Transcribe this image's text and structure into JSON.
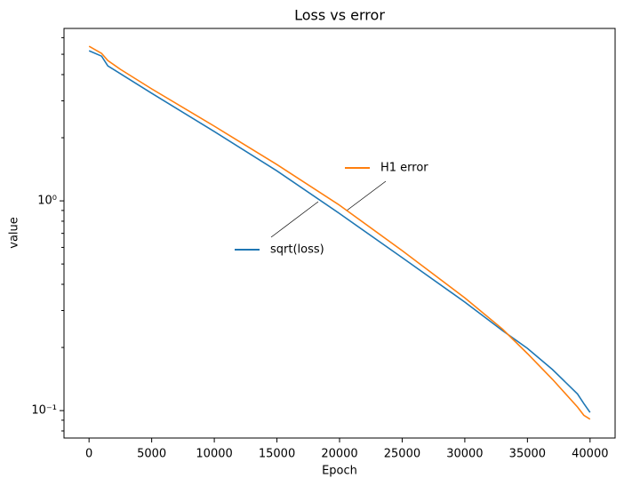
{
  "chart_data": {
    "type": "line",
    "title": "Loss vs error",
    "xlabel": "Epoch",
    "ylabel": "value",
    "ylog": true,
    "grid": false,
    "x": [
      0,
      1000,
      1500,
      2500,
      5000,
      10000,
      15000,
      20000,
      25000,
      30000,
      33000,
      35000,
      37000,
      39000,
      39500,
      40000
    ],
    "series": [
      {
        "name": "sqrt(loss)",
        "color": "#1f77b4",
        "values": [
          5.2,
          4.9,
          4.4,
          4.04,
          3.26,
          2.14,
          1.39,
          0.87,
          0.536,
          0.329,
          0.241,
          0.198,
          0.157,
          0.12,
          0.108,
          0.098
        ]
      },
      {
        "name": "H1 error",
        "color": "#ff7f0e",
        "values": [
          5.46,
          5.05,
          4.67,
          4.24,
          3.42,
          2.27,
          1.49,
          0.953,
          0.579,
          0.345,
          0.245,
          0.187,
          0.141,
          0.104,
          0.095,
          0.091
        ]
      }
    ],
    "xlim": [
      -2000,
      42000
    ],
    "xticks": [
      0,
      5000,
      10000,
      15000,
      20000,
      25000,
      30000,
      35000,
      40000
    ],
    "ylim": [
      0.074,
      6.64
    ],
    "yticks": [
      {
        "value": 0.1,
        "label": "10⁻¹"
      },
      {
        "value": 1,
        "label": "10⁰"
      }
    ],
    "yticks_minor": [
      0.08,
      0.09,
      0.2,
      0.3,
      0.4,
      0.5,
      0.6,
      0.7,
      0.8,
      0.9,
      2,
      3,
      4,
      5,
      6
    ]
  }
}
